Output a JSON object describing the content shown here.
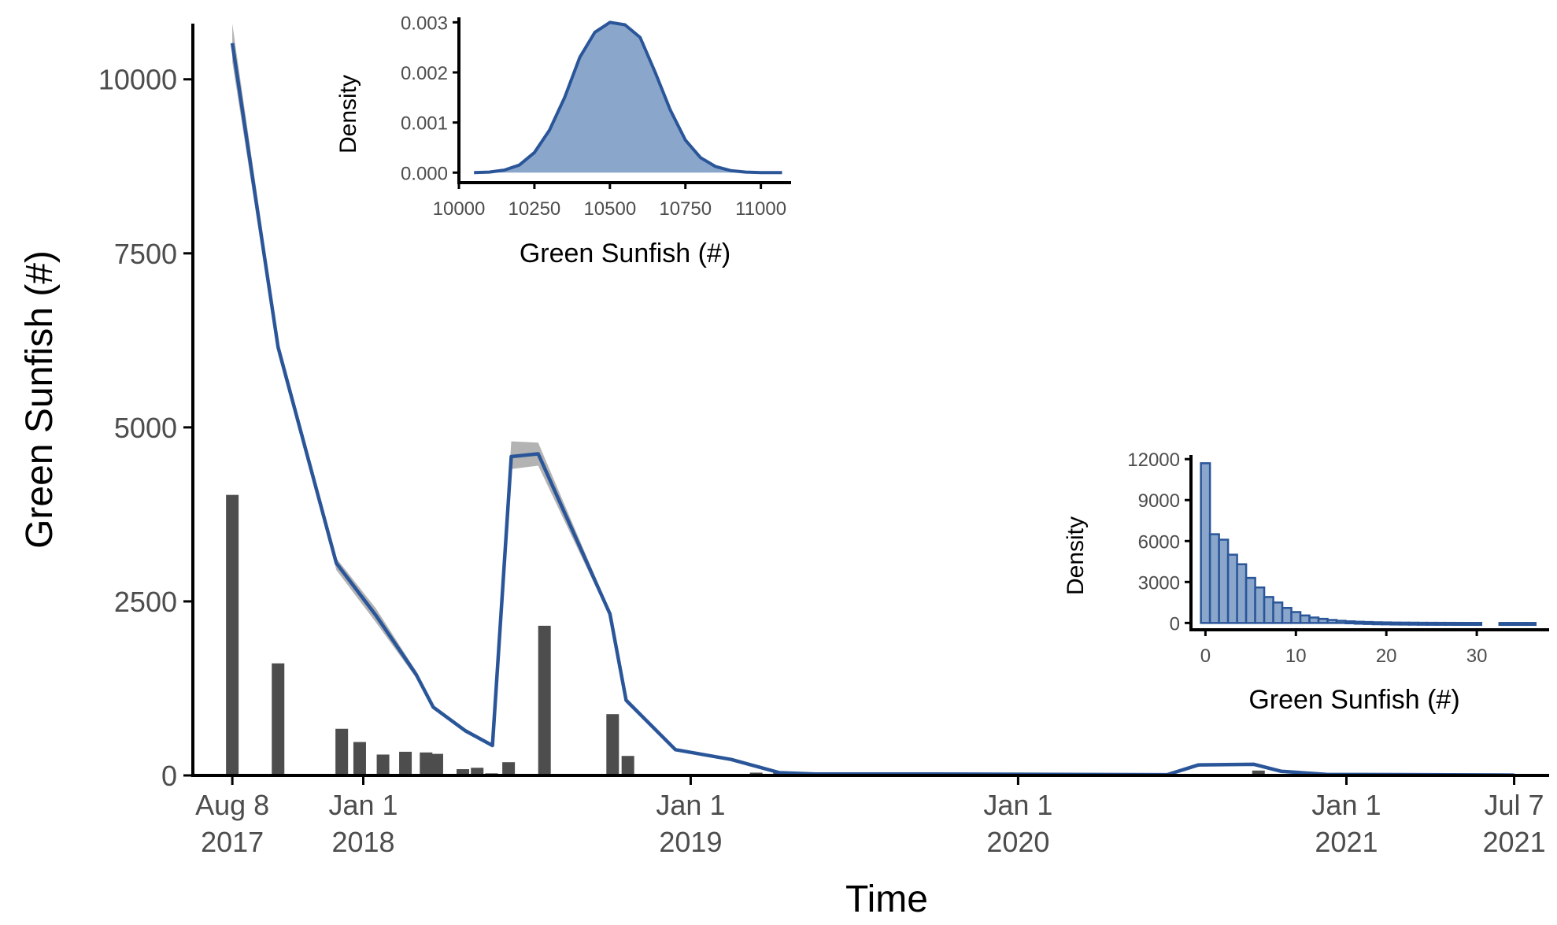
{
  "colors": {
    "line": "#2a5699",
    "ribbon": "#b3b3b3",
    "bars": "#4d4d4d",
    "inset_fill": "#8aa6cb",
    "axis": "#000000",
    "tick_text": "#4d4d4d"
  },
  "chart_data": [
    {
      "id": "main",
      "type": "line+bar",
      "xlabel": "Time",
      "ylabel": "Green Sunfish (#)",
      "x_type": "date",
      "xlim": [
        "2017-06-25",
        "2021-08-15"
      ],
      "ylim": [
        0,
        10800
      ],
      "xticks": [
        {
          "date": "2017-08-08",
          "line1": "Aug 8",
          "line2": "2017"
        },
        {
          "date": "2018-01-01",
          "line1": "Jan 1",
          "line2": "2018"
        },
        {
          "date": "2019-01-01",
          "line1": "Jan 1",
          "line2": "2019"
        },
        {
          "date": "2020-01-01",
          "line1": "Jan 1",
          "line2": "2020"
        },
        {
          "date": "2021-01-01",
          "line1": "Jan 1",
          "line2": "2021"
        },
        {
          "date": "2021-07-07",
          "line1": "Jul 7",
          "line2": "2021"
        }
      ],
      "yticks": [
        0,
        2500,
        5000,
        7500,
        10000
      ],
      "grid": false,
      "series": [
        {
          "type": "line",
          "points": [
            {
              "x": "2017-08-08",
              "y": 10520,
              "lo": 10250,
              "hi": 10800
            },
            {
              "x": "2017-09-28",
              "y": 6150,
              "lo": 6050,
              "hi": 6250
            },
            {
              "x": "2017-12-02",
              "y": 3050,
              "lo": 2950,
              "hi": 3120
            },
            {
              "x": "2018-01-15",
              "y": 2300,
              "lo": 2200,
              "hi": 2400
            },
            {
              "x": "2018-03-01",
              "y": 1450,
              "lo": 1400,
              "hi": 1500
            },
            {
              "x": "2018-03-20",
              "y": 980,
              "lo": 950,
              "hi": 1010
            },
            {
              "x": "2018-04-25",
              "y": 640,
              "lo": 610,
              "hi": 670
            },
            {
              "x": "2018-05-25",
              "y": 430,
              "lo": 410,
              "hi": 450
            },
            {
              "x": "2018-06-15",
              "y": 4580,
              "lo": 4400,
              "hi": 4800
            },
            {
              "x": "2018-07-15",
              "y": 4620,
              "lo": 4450,
              "hi": 4780
            },
            {
              "x": "2018-10-03",
              "y": 2320,
              "lo": 2280,
              "hi": 2360
            },
            {
              "x": "2018-10-21",
              "y": 1080,
              "lo": 1040,
              "hi": 1120
            },
            {
              "x": "2018-12-15",
              "y": 370,
              "lo": 355,
              "hi": 385
            },
            {
              "x": "2019-02-15",
              "y": 230,
              "lo": 220,
              "hi": 240
            },
            {
              "x": "2019-04-10",
              "y": 40,
              "lo": 35,
              "hi": 45
            },
            {
              "x": "2019-05-20",
              "y": 20,
              "lo": 15,
              "hi": 25
            },
            {
              "x": "2019-10-01",
              "y": 20,
              "lo": 15,
              "hi": 25
            },
            {
              "x": "2020-06-15",
              "y": 10,
              "lo": 5,
              "hi": 15
            },
            {
              "x": "2020-07-20",
              "y": 150,
              "lo": 140,
              "hi": 160
            },
            {
              "x": "2020-09-20",
              "y": 160,
              "lo": 150,
              "hi": 170
            },
            {
              "x": "2020-10-20",
              "y": 60,
              "lo": 55,
              "hi": 65
            },
            {
              "x": "2020-12-10",
              "y": 15,
              "lo": 10,
              "hi": 20
            },
            {
              "x": "2021-07-07",
              "y": 5,
              "lo": 0,
              "hi": 10
            }
          ]
        },
        {
          "type": "bar",
          "points": [
            {
              "x": "2017-08-08",
              "y": 4030
            },
            {
              "x": "2017-09-28",
              "y": 1610
            },
            {
              "x": "2017-12-08",
              "y": 670
            },
            {
              "x": "2017-12-28",
              "y": 480
            },
            {
              "x": "2018-01-23",
              "y": 300
            },
            {
              "x": "2018-02-17",
              "y": 340
            },
            {
              "x": "2018-03-12",
              "y": 330
            },
            {
              "x": "2018-03-24",
              "y": 310
            },
            {
              "x": "2018-04-22",
              "y": 90
            },
            {
              "x": "2018-05-08",
              "y": 110
            },
            {
              "x": "2018-05-24",
              "y": 30
            },
            {
              "x": "2018-06-12",
              "y": 190
            },
            {
              "x": "2018-07-22",
              "y": 2150
            },
            {
              "x": "2018-10-06",
              "y": 880
            },
            {
              "x": "2018-10-23",
              "y": 280
            },
            {
              "x": "2018-11-25",
              "y": 20
            },
            {
              "x": "2019-03-15",
              "y": 40
            },
            {
              "x": "2019-04-10",
              "y": 40
            },
            {
              "x": "2020-09-25",
              "y": 70
            }
          ]
        }
      ]
    },
    {
      "id": "inset_density",
      "type": "area",
      "xlabel": "Green Sunfish (#)",
      "ylabel": "Density",
      "xlim": [
        10000,
        11100
      ],
      "ylim": [
        -0.0002,
        0.0031
      ],
      "xticks": [
        10000,
        10250,
        10500,
        10750,
        11000
      ],
      "xtick_labels": [
        "10000",
        "10250",
        "10500",
        "10750",
        "11000"
      ],
      "yticks": [
        0,
        0.001,
        0.002,
        0.003
      ],
      "ytick_labels": [
        "0.000",
        "0.001",
        "0.002",
        "0.003"
      ],
      "x": [
        10050,
        10100,
        10150,
        10200,
        10250,
        10300,
        10350,
        10400,
        10450,
        10500,
        10550,
        10600,
        10650,
        10700,
        10750,
        10800,
        10850,
        10900,
        10950,
        11000,
        11070
      ],
      "y": [
        0.0,
        1e-05,
        5e-05,
        0.00015,
        0.0004,
        0.00085,
        0.0015,
        0.0023,
        0.0028,
        0.003,
        0.00295,
        0.0027,
        0.002,
        0.00125,
        0.00065,
        0.0003,
        0.00012,
        4e-05,
        1e-05,
        0.0,
        0.0
      ]
    },
    {
      "id": "inset_hist",
      "type": "bar",
      "xlabel": "Green Sunfish (#)",
      "ylabel": "Density",
      "xlim": [
        -1.6,
        38
      ],
      "ylim": [
        -500,
        12300
      ],
      "xticks": [
        0,
        10,
        20,
        30
      ],
      "xtick_labels": [
        "0",
        "10",
        "20",
        "30"
      ],
      "yticks": [
        0,
        3000,
        6000,
        9000,
        12000
      ],
      "ytick_labels": [
        "0",
        "3000",
        "6000",
        "9000",
        "12000"
      ],
      "x": [
        0,
        1,
        2,
        3,
        4,
        5,
        6,
        7,
        8,
        9,
        10,
        11,
        12,
        13,
        14,
        15,
        16,
        17,
        18,
        19,
        20,
        21,
        22,
        23,
        24,
        25,
        26,
        27,
        28,
        29,
        30,
        33,
        34,
        35,
        36
      ],
      "values": [
        11700,
        6500,
        6100,
        5000,
        4300,
        3300,
        2600,
        1900,
        1500,
        1100,
        800,
        550,
        400,
        300,
        220,
        160,
        120,
        90,
        70,
        50,
        40,
        30,
        25,
        20,
        15,
        12,
        10,
        8,
        6,
        5,
        4,
        2,
        2,
        2,
        2
      ]
    }
  ]
}
